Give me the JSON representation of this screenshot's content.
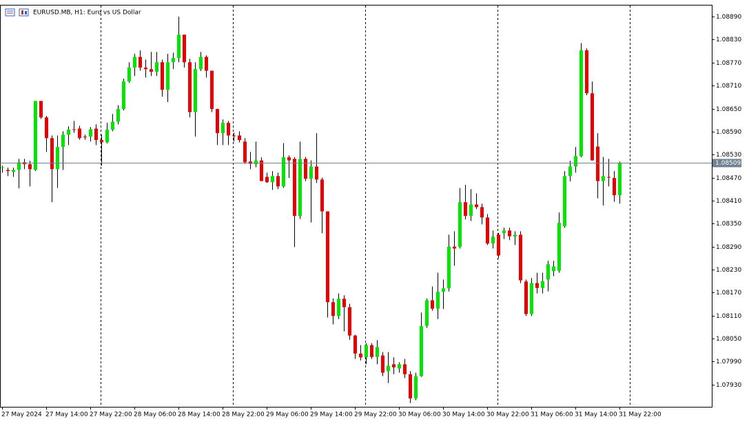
{
  "chart_data": {
    "type": "candlestick",
    "title": "EURUSD.MB, H1:  Euro vs US Dollar",
    "categories": [
      "27 May 2024",
      null,
      null,
      null,
      null,
      null,
      null,
      null,
      "27 May 14:00",
      null,
      null,
      null,
      null,
      null,
      null,
      null,
      "27 May 22:00",
      null,
      null,
      null,
      null,
      null,
      null,
      null,
      "28 May 06:00",
      null,
      null,
      null,
      null,
      null,
      null,
      null,
      "28 May 14:00",
      null,
      null,
      null,
      null,
      null,
      null,
      null,
      "28 May 22:00",
      null,
      null,
      null,
      null,
      null,
      null,
      null,
      "29 May 06:00",
      null,
      null,
      null,
      null,
      null,
      null,
      null,
      "29 May 14:00",
      null,
      null,
      null,
      null,
      null,
      null,
      null,
      "29 May 22:00",
      null,
      null,
      null,
      null,
      null,
      null,
      null,
      "30 May 06:00",
      null,
      null,
      null,
      null,
      null,
      null,
      null,
      "30 May 14:00",
      null,
      null,
      null,
      null,
      null,
      null,
      null,
      "30 May 22:00",
      null,
      null,
      null,
      null,
      null,
      null,
      null,
      "31 May 06:00",
      null,
      null,
      null,
      null,
      null,
      null,
      null,
      "31 May 14:00",
      null,
      null,
      null,
      null,
      null,
      null,
      null,
      "31 May 22:00"
    ],
    "open": [
      1.08496,
      1.0849,
      1.08485,
      1.0849,
      1.0851,
      1.08505,
      1.0849,
      1.0867,
      1.08627,
      1.08573,
      1.08492,
      1.0855,
      1.08582,
      1.08596,
      1.08598,
      1.08577,
      1.08577,
      1.08598,
      1.08568,
      1.08562,
      1.08595,
      1.08616,
      1.08649,
      1.08721,
      1.08757,
      1.08785,
      1.08757,
      1.08753,
      1.08746,
      1.08771,
      1.08699,
      1.08771,
      1.08782,
      1.08843,
      1.08771,
      1.08641,
      1.08753,
      1.08785,
      1.08749,
      1.08649,
      1.08586,
      1.08613,
      1.0858,
      1.0858,
      1.08564,
      1.08512,
      1.08505,
      1.08515,
      1.08472,
      1.08458,
      1.08474,
      1.08447,
      1.08523,
      1.08519,
      1.0837,
      1.08519,
      1.08467,
      1.08499,
      1.08465,
      1.08382,
      1.08145,
      1.08109,
      1.08154,
      1.08132,
      1.08058,
      1.08011,
      1.08001,
      1.08033,
      1.08002,
      1.08006,
      1.07965,
      1.07983,
      1.07972,
      1.07983,
      1.07957,
      1.07894,
      1.07952,
      1.08083,
      1.0815,
      1.08128,
      1.08172,
      1.08181,
      1.0829,
      1.08289,
      1.08406,
      1.0837,
      1.084,
      1.08393,
      1.08366,
      1.08298,
      1.08321,
      1.08325,
      1.08332,
      1.08316,
      1.08321,
      1.08199,
      1.08114,
      1.08195,
      1.08182,
      1.08204,
      1.08226,
      1.08227,
      1.08343,
      1.08474,
      1.08499,
      1.08526,
      1.08802,
      1.0869,
      1.08551,
      1.08461,
      1.08472,
      1.08469,
      1.08424
    ],
    "high": [
      1.08501,
      1.08496,
      1.08496,
      1.08519,
      1.08519,
      1.08514,
      1.0867,
      1.0867,
      1.08631,
      1.0858,
      1.0858,
      1.08591,
      1.08604,
      1.08618,
      1.08605,
      1.08582,
      1.08602,
      1.08609,
      1.08582,
      1.08613,
      1.08636,
      1.08659,
      1.08728,
      1.08771,
      1.08793,
      1.08802,
      1.08778,
      1.08798,
      1.08798,
      1.08778,
      1.08793,
      1.08796,
      1.0889,
      1.08843,
      1.0878,
      1.08771,
      1.08798,
      1.08789,
      1.08749,
      1.0865,
      1.08622,
      1.08618,
      1.08587,
      1.08591,
      1.08573,
      1.08537,
      1.08564,
      1.08523,
      1.08483,
      1.08487,
      1.08483,
      1.0856,
      1.08528,
      1.08523,
      1.08564,
      1.08524,
      1.08515,
      1.08586,
      1.0847,
      1.08382,
      1.08155,
      1.08168,
      1.08163,
      1.08141,
      1.0806,
      1.08033,
      1.08038,
      1.08038,
      1.08046,
      1.08015,
      1.08015,
      1.08001,
      1.07988,
      1.07997,
      1.07965,
      1.07961,
      1.08118,
      1.08155,
      1.08186,
      1.08222,
      1.08204,
      1.08321,
      1.0833,
      1.08443,
      1.08451,
      1.0844,
      1.08429,
      1.08402,
      1.08375,
      1.08332,
      1.08326,
      1.08339,
      1.08339,
      1.0833,
      1.0833,
      1.08204,
      1.08208,
      1.08222,
      1.08222,
      1.08253,
      1.08253,
      1.08379,
      1.08487,
      1.08514,
      1.0855,
      1.08821,
      1.08807,
      1.08721,
      1.08586,
      1.08524,
      1.08519,
      1.08487,
      1.08512
    ],
    "low": [
      1.08483,
      1.08474,
      1.08472,
      1.08442,
      1.08492,
      1.08447,
      1.08487,
      1.08623,
      1.08537,
      1.08406,
      1.08443,
      1.0849,
      1.08555,
      1.08587,
      1.08569,
      1.08569,
      1.08564,
      1.08555,
      1.08501,
      1.08559,
      1.08591,
      1.08609,
      1.08645,
      1.08717,
      1.08735,
      1.08749,
      1.08731,
      1.08735,
      1.08735,
      1.08681,
      1.08667,
      1.08753,
      1.08771,
      1.08757,
      1.08627,
      1.08577,
      1.08748,
      1.08731,
      1.08641,
      1.08555,
      1.08555,
      1.08555,
      1.08564,
      1.08562,
      1.08506,
      1.08492,
      1.08497,
      1.08461,
      1.08456,
      1.08438,
      1.0844,
      1.08443,
      1.08469,
      1.08289,
      1.08362,
      1.08461,
      1.08353,
      1.08456,
      1.08325,
      1.08105,
      1.08087,
      1.08101,
      1.08069,
      1.08047,
      1.07997,
      1.07993,
      1.07983,
      1.07997,
      1.07983,
      1.07952,
      1.07934,
      1.07957,
      1.07961,
      1.07947,
      1.07882,
      1.07889,
      1.0795,
      1.08078,
      1.08123,
      1.08101,
      1.08127,
      1.08173,
      1.0824,
      1.08285,
      1.08361,
      1.08357,
      1.08388,
      1.08348,
      1.08294,
      1.08285,
      1.0826,
      1.0831,
      1.08307,
      1.08294,
      1.08195,
      1.08109,
      1.08109,
      1.08168,
      1.08168,
      1.08173,
      1.08213,
      1.08222,
      1.08339,
      1.0846,
      1.08483,
      1.08523,
      1.08685,
      1.08514,
      1.08416,
      1.08397,
      1.08447,
      1.08407,
      1.08402
    ],
    "close": [
      1.08497,
      1.08487,
      1.0849,
      1.0851,
      1.08505,
      1.08492,
      1.0867,
      1.08627,
      1.08573,
      1.08492,
      1.0855,
      1.08582,
      1.08595,
      1.08595,
      1.08573,
      1.08575,
      1.08596,
      1.08568,
      1.08562,
      1.08595,
      1.08616,
      1.08649,
      1.08721,
      1.08757,
      1.08785,
      1.08757,
      1.08753,
      1.08746,
      1.08771,
      1.08699,
      1.08771,
      1.08782,
      1.08843,
      1.08771,
      1.08641,
      1.08753,
      1.08785,
      1.08749,
      1.08649,
      1.08586,
      1.08613,
      1.0858,
      1.08578,
      1.08568,
      1.0851,
      1.08506,
      1.08515,
      1.08461,
      1.08458,
      1.08474,
      1.08447,
      1.08523,
      1.08515,
      1.0837,
      1.08519,
      1.08467,
      1.08499,
      1.08465,
      1.08382,
      1.08145,
      1.08109,
      1.08154,
      1.08132,
      1.08058,
      1.08011,
      1.08001,
      1.08033,
      1.08002,
      1.08028,
      1.07961,
      1.07979,
      1.07975,
      1.07983,
      1.07957,
      1.07894,
      1.07952,
      1.08083,
      1.0815,
      1.08128,
      1.08172,
      1.08181,
      1.0829,
      1.08285,
      1.08406,
      1.0837,
      1.084,
      1.08393,
      1.08366,
      1.08298,
      1.08316,
      1.08267,
      1.08332,
      1.08317,
      1.08321,
      1.08202,
      1.08114,
      1.08195,
      1.08182,
      1.082,
      1.08244,
      1.08238,
      1.08352,
      1.08474,
      1.08499,
      1.08526,
      1.08802,
      1.0869,
      1.08515,
      1.08461,
      1.08474,
      1.0847,
      1.08424,
      1.08508
    ],
    "up_color": "#00e600",
    "down_color": "#e60000",
    "wick_color": "#000000",
    "current_price": 1.08509,
    "current_price_color": "#708090",
    "ylim": [
      1.07872,
      1.08919
    ],
    "yticks": [
      {
        "value": 1.0889,
        "label": "1.08890"
      },
      {
        "value": 1.0883,
        "label": "1.08830"
      },
      {
        "value": 1.0877,
        "label": "1.08770"
      },
      {
        "value": 1.0871,
        "label": "1.08710"
      },
      {
        "value": 1.0865,
        "label": "1.08650"
      },
      {
        "value": 1.0859,
        "label": "1.08590"
      },
      {
        "value": 1.0853,
        "label": "1.08530"
      },
      {
        "value": 1.0847,
        "label": "1.08470"
      },
      {
        "value": 1.0841,
        "label": "1.08410"
      },
      {
        "value": 1.0835,
        "label": "1.08350"
      },
      {
        "value": 1.0829,
        "label": "1.08290"
      },
      {
        "value": 1.0823,
        "label": "1.08230"
      },
      {
        "value": 1.0817,
        "label": "1.08170"
      },
      {
        "value": 1.0811,
        "label": "1.08110"
      },
      {
        "value": 1.0805,
        "label": "1.08050"
      },
      {
        "value": 1.0799,
        "label": "1.07990"
      },
      {
        "value": 1.0793,
        "label": "1.07930"
      }
    ],
    "grid": false
  }
}
